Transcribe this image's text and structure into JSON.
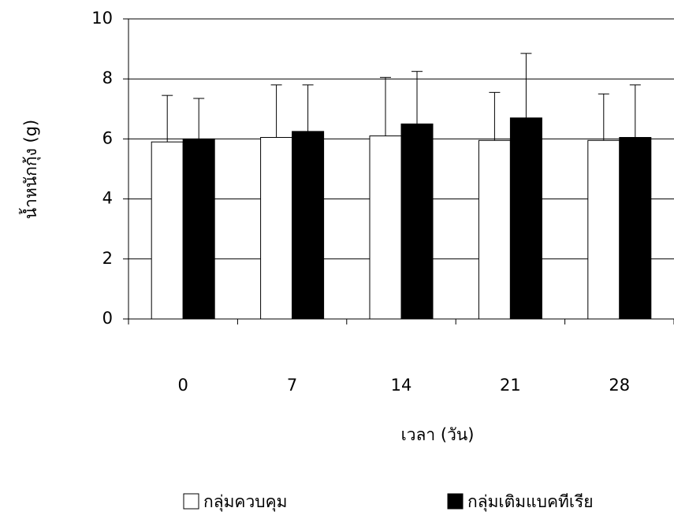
{
  "chart_data": {
    "type": "bar",
    "x_label": "เวลา (วัน)",
    "y_label": "น้ำหนักกุ้ง (g)",
    "categories": [
      "0",
      "7",
      "14",
      "21",
      "28"
    ],
    "series": [
      {
        "name": "กลุ่มควบคุม",
        "color": "#ffffff",
        "values": [
          5.9,
          6.05,
          6.1,
          5.95,
          5.95
        ],
        "errors": [
          1.55,
          1.75,
          1.95,
          1.6,
          1.55
        ]
      },
      {
        "name": "กลุ่มเติมแบคทีเรีย",
        "color": "#000000",
        "values": [
          6.0,
          6.25,
          6.5,
          6.7,
          6.05
        ],
        "errors": [
          1.35,
          1.55,
          1.75,
          2.15,
          1.75
        ]
      }
    ],
    "ylim": [
      0,
      10
    ],
    "yticks": [
      0,
      2,
      4,
      6,
      8,
      10
    ],
    "grid": true
  }
}
